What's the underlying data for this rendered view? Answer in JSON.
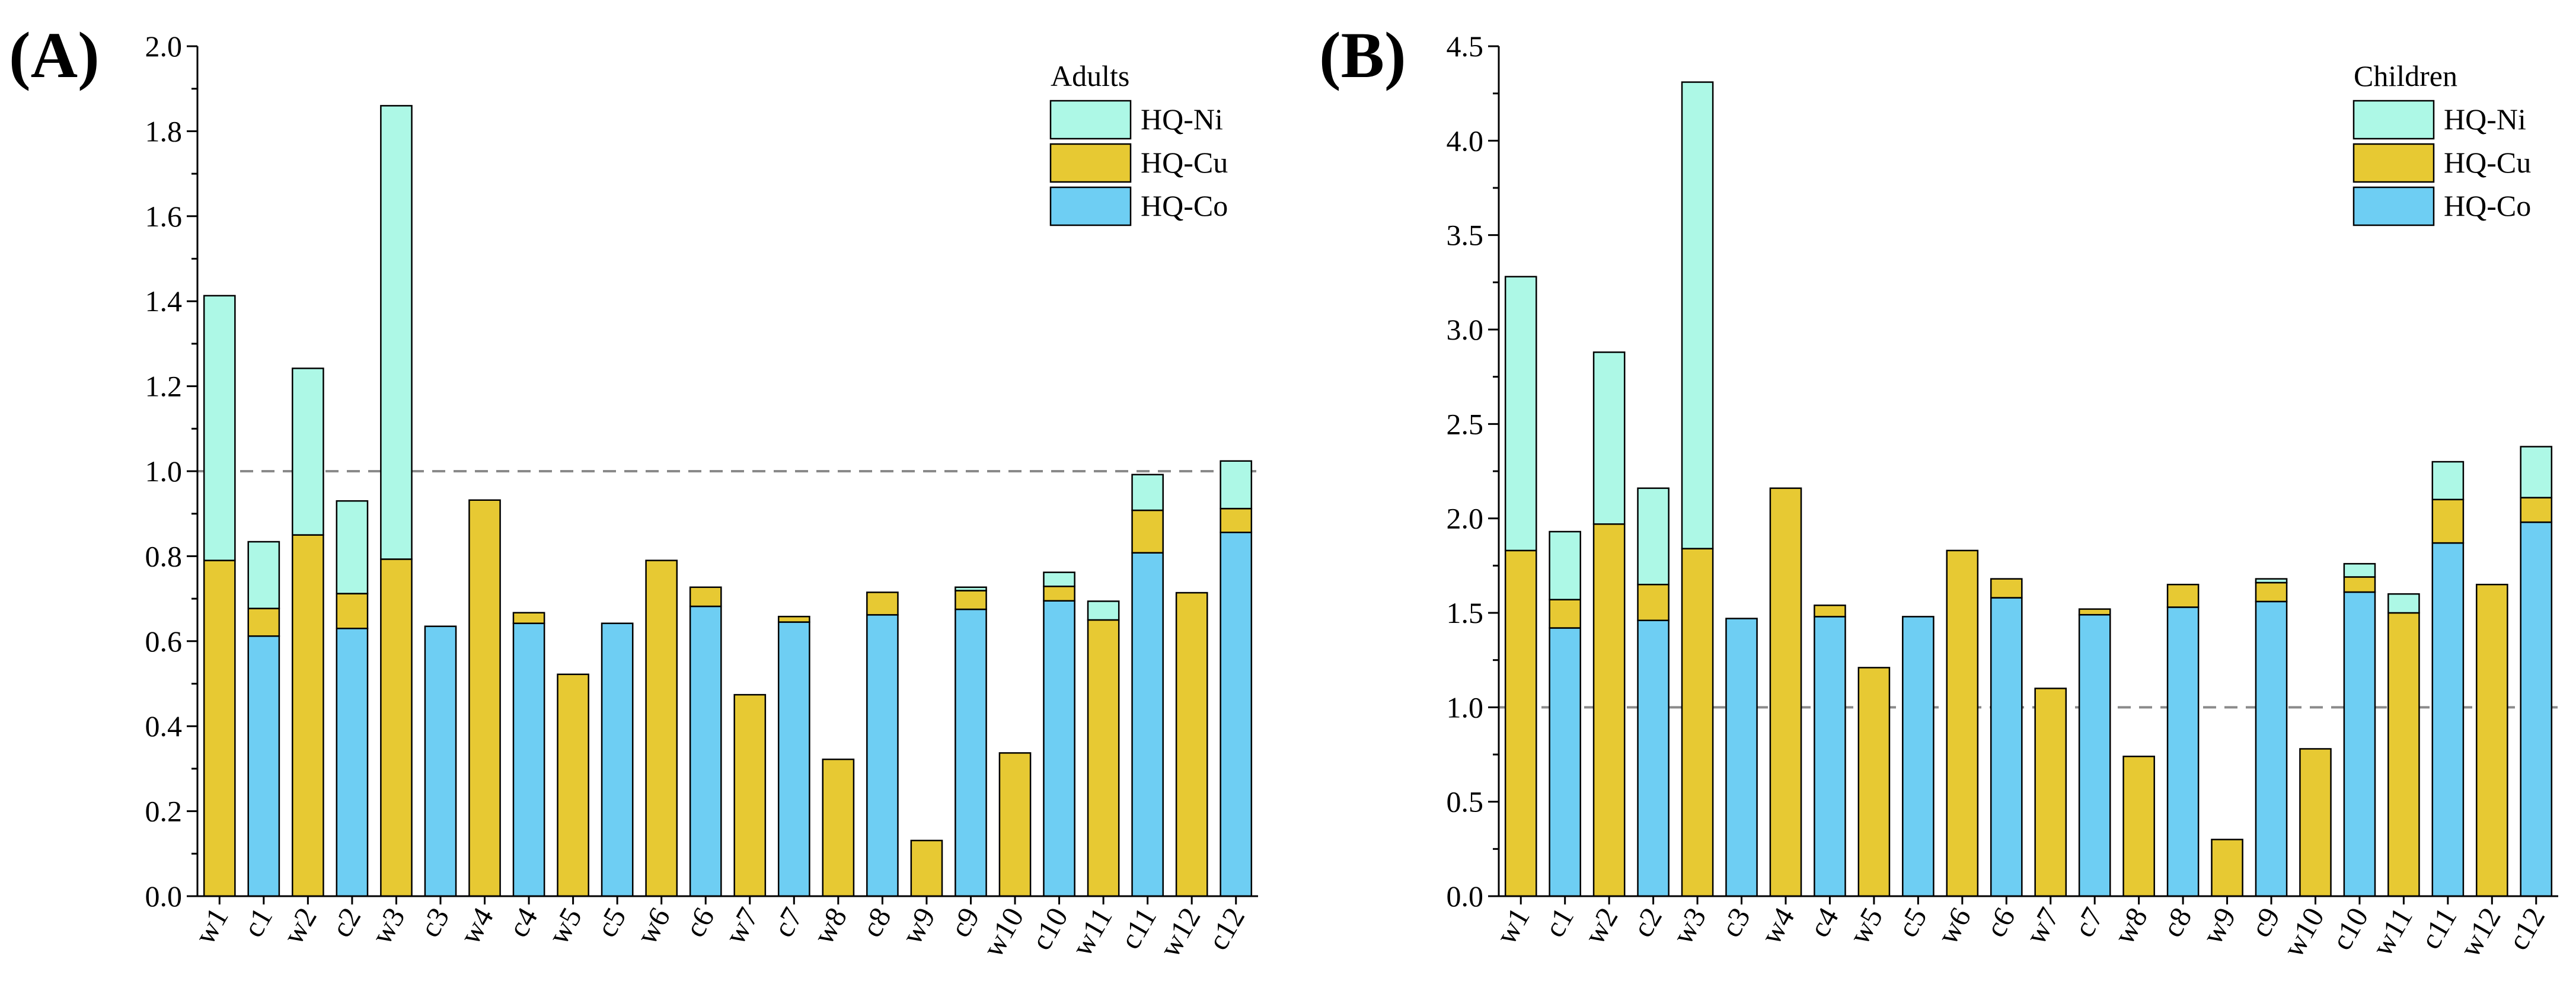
{
  "colors": {
    "HQ-Ni": "#adf8e6",
    "HQ-Cu": "#e7c933",
    "HQ-Co": "#6ecef3",
    "threshold": "#8a8a8a"
  },
  "chart_data": [
    {
      "type": "bar",
      "stacked": true,
      "panel_label": "(A)",
      "legend_title": "Adults",
      "legend_position": "top-right",
      "categories": [
        "w1",
        "c1",
        "w2",
        "c2",
        "w3",
        "c3",
        "w4",
        "c4",
        "w5",
        "c5",
        "w6",
        "c6",
        "w7",
        "c7",
        "w8",
        "c8",
        "w9",
        "c9",
        "w10",
        "c10",
        "w11",
        "c11",
        "w12",
        "c12"
      ],
      "series": [
        {
          "name": "HQ-Co",
          "values": [
            0,
            0.612,
            0,
            0.63,
            0,
            0.635,
            0,
            0.642,
            0,
            0.642,
            0,
            0.682,
            0,
            0.645,
            0,
            0.662,
            0,
            0.675,
            0,
            0.695,
            0,
            0.808,
            0,
            0.856
          ]
        },
        {
          "name": "HQ-Cu",
          "values": [
            0.79,
            0.065,
            0.85,
            0.082,
            0.793,
            0,
            0.932,
            0.025,
            0.522,
            0,
            0.79,
            0.045,
            0.474,
            0.013,
            0.322,
            0.053,
            0.131,
            0.044,
            0.337,
            0.034,
            0.65,
            0.1,
            0.714,
            0.056
          ]
        },
        {
          "name": "HQ-Ni",
          "values": [
            0.623,
            0.157,
            0.392,
            0.218,
            1.067,
            0,
            0,
            0,
            0,
            0,
            0,
            0,
            0,
            0,
            0,
            0,
            0,
            0.008,
            0,
            0.033,
            0.044,
            0.084,
            0,
            0.112
          ]
        }
      ],
      "ylim": [
        0,
        2.0
      ],
      "yticks": [
        "0.0",
        "0.2",
        "0.4",
        "0.6",
        "0.8",
        "1.0",
        "1.2",
        "1.4",
        "1.6",
        "1.8",
        "2.0"
      ],
      "threshold": 1.0,
      "xlabel": "",
      "ylabel": ""
    },
    {
      "type": "bar",
      "stacked": true,
      "panel_label": "(B)",
      "legend_title": "Children",
      "legend_position": "top-right",
      "categories": [
        "w1",
        "c1",
        "w2",
        "c2",
        "w3",
        "c3",
        "w4",
        "c4",
        "w5",
        "c5",
        "w6",
        "c6",
        "w7",
        "c7",
        "w8",
        "c8",
        "w9",
        "c9",
        "w10",
        "c10",
        "w11",
        "c11",
        "w12",
        "c12"
      ],
      "series": [
        {
          "name": "HQ-Co",
          "values": [
            0,
            1.42,
            0,
            1.46,
            0,
            1.47,
            0,
            1.48,
            0,
            1.48,
            0,
            1.58,
            0,
            1.49,
            0,
            1.53,
            0,
            1.56,
            0,
            1.61,
            0,
            1.87,
            0,
            1.98
          ]
        },
        {
          "name": "HQ-Cu",
          "values": [
            1.83,
            0.15,
            1.97,
            0.19,
            1.84,
            0,
            2.16,
            0.06,
            1.21,
            0,
            1.83,
            0.1,
            1.1,
            0.03,
            0.74,
            0.12,
            0.3,
            0.1,
            0.78,
            0.08,
            1.5,
            0.23,
            1.65,
            0.13
          ]
        },
        {
          "name": "HQ-Ni",
          "values": [
            1.45,
            0.36,
            0.91,
            0.51,
            2.47,
            0,
            0,
            0,
            0,
            0,
            0,
            0,
            0,
            0,
            0,
            0,
            0,
            0.02,
            0,
            0.07,
            0.1,
            0.2,
            0,
            0.27
          ]
        }
      ],
      "ylim": [
        0,
        4.5
      ],
      "yticks": [
        "0.0",
        "0.5",
        "1.0",
        "1.5",
        "2.0",
        "2.5",
        "3.0",
        "3.5",
        "4.0",
        "4.5"
      ],
      "threshold": 1.0,
      "xlabel": "",
      "ylabel": ""
    }
  ]
}
